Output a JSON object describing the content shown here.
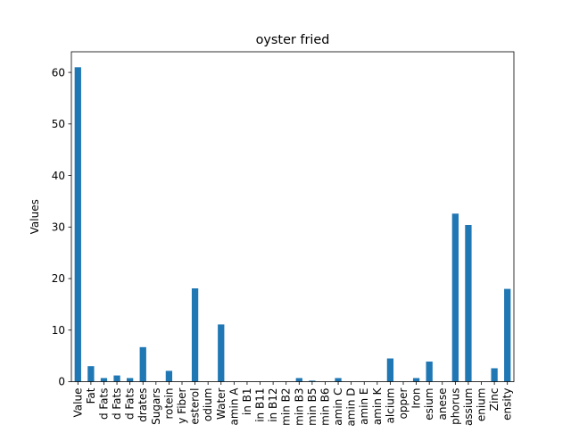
{
  "chart_data": {
    "type": "bar",
    "title": "oyster fried",
    "xlabel": "",
    "ylabel": "Values",
    "ylim": [
      0,
      64
    ],
    "yticks": [
      0,
      10,
      20,
      30,
      40,
      50,
      60
    ],
    "grid": false,
    "legend": "none",
    "bar_color": "#1f77b4",
    "categories": [
      "Value",
      "Fat",
      "d Fats",
      "d Fats",
      "d Fats",
      "drates",
      "Sugars",
      "rotein",
      "y Fiber",
      "esterol",
      "odium",
      "Water",
      "amin A",
      "in B1",
      "in B11",
      "in B12",
      "min B2",
      "min B3",
      "min B5",
      "min B6",
      "amin C",
      "amin D",
      "amin E",
      "amin K",
      "alcium",
      "opper",
      "Iron",
      "esium",
      "anese",
      "phorus",
      "assium",
      "enium",
      "Zinc",
      "ensity"
    ],
    "values": [
      61.0,
      3.0,
      0.7,
      1.2,
      0.7,
      6.7,
      0.0,
      2.1,
      0.0,
      18.1,
      0.0,
      11.1,
      0.0,
      0.0,
      0.0,
      0.0,
      0.0,
      0.7,
      0.2,
      0.0,
      0.7,
      0.0,
      0.0,
      0.0,
      4.5,
      0.0,
      0.7,
      3.9,
      0.0,
      32.6,
      30.4,
      0.0,
      2.6,
      18.0
    ]
  }
}
